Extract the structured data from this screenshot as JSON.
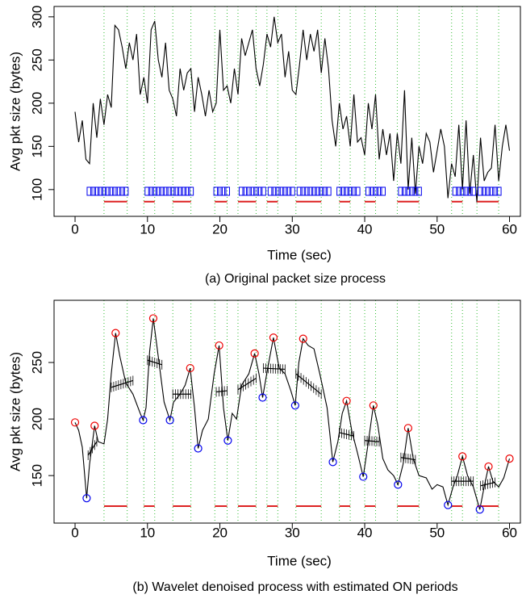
{
  "chart_data": [
    {
      "type": "line",
      "caption": "(a) Original packet size process",
      "xlabel": "Time (sec)",
      "ylabel": "Avg pkt size (bytes)",
      "xlim": [
        -2.9,
        61.5
      ],
      "ylim": [
        69,
        312
      ],
      "xticks": [
        0,
        10,
        20,
        30,
        40,
        50,
        60
      ],
      "yticks": [
        100,
        150,
        200,
        250,
        300
      ],
      "guide_color": "#33bb33",
      "line": {
        "color": "#000000",
        "x": [
          0,
          0.5,
          1,
          1.5,
          2,
          2.5,
          3,
          3.5,
          4,
          4.5,
          5,
          5.5,
          6,
          6.5,
          7,
          7.5,
          8,
          8.5,
          9,
          9.5,
          10,
          10.5,
          11,
          11.5,
          12,
          12.5,
          13,
          13.5,
          14,
          14.5,
          15,
          15.5,
          16,
          16.5,
          17,
          17.5,
          18,
          18.5,
          19,
          19.5,
          20,
          20.5,
          21,
          21.5,
          22,
          22.5,
          23,
          23.5,
          24,
          24.5,
          25,
          25.5,
          26,
          26.5,
          27,
          27.5,
          28,
          28.5,
          29,
          29.5,
          30,
          30.5,
          31,
          31.5,
          32,
          32.5,
          33,
          33.5,
          34,
          34.5,
          35,
          35.5,
          36,
          36.5,
          37,
          37.5,
          38,
          38.5,
          39,
          39.5,
          40,
          40.5,
          41,
          41.5,
          42,
          42.5,
          43,
          43.5,
          44,
          44.5,
          45,
          45.5,
          46,
          46.5,
          47,
          47.5,
          48,
          48.5,
          49,
          49.5,
          50,
          50.5,
          51,
          51.5,
          52,
          52.5,
          53,
          53.5,
          54,
          54.5,
          55,
          55.5,
          56,
          56.5,
          57,
          57.5,
          58,
          58.5,
          59,
          59.5,
          60
        ],
        "y": [
          190,
          155,
          180,
          135,
          130,
          200,
          160,
          205,
          175,
          210,
          195,
          290,
          285,
          265,
          240,
          270,
          250,
          280,
          210,
          230,
          200,
          285,
          295,
          250,
          230,
          270,
          215,
          205,
          185,
          240,
          215,
          235,
          240,
          190,
          230,
          210,
          185,
          215,
          190,
          200,
          285,
          215,
          220,
          200,
          240,
          210,
          275,
          255,
          270,
          285,
          240,
          220,
          245,
          280,
          265,
          300,
          270,
          280,
          230,
          260,
          215,
          210,
          245,
          285,
          250,
          280,
          260,
          285,
          235,
          275,
          240,
          180,
          150,
          200,
          170,
          185,
          150,
          210,
          155,
          160,
          140,
          200,
          170,
          210,
          135,
          170,
          140,
          165,
          110,
          165,
          130,
          215,
          100,
          160,
          95,
          150,
          130,
          165,
          155,
          120,
          145,
          170,
          150,
          90,
          130,
          115,
          175,
          100,
          180,
          95,
          140,
          85,
          160,
          110,
          120,
          125,
          175,
          110,
          150,
          175,
          145
        ]
      },
      "on_markers": {
        "color": "#0000ee",
        "y": 98,
        "x": [
          2,
          2.5,
          3,
          3.5,
          4,
          4.5,
          5,
          5.5,
          6,
          6.5,
          7,
          10,
          10.5,
          11,
          11.5,
          12,
          12.5,
          13,
          13.5,
          14,
          14.5,
          15,
          15.5,
          16,
          19.5,
          20,
          20.5,
          21,
          23,
          23.5,
          24,
          24.5,
          25,
          25.5,
          26,
          27,
          27.5,
          28,
          28.5,
          29,
          29.5,
          30,
          31,
          31.5,
          32,
          32.5,
          33,
          33.5,
          34,
          34.5,
          35,
          36.5,
          37,
          37.5,
          38,
          38.5,
          39,
          40.5,
          41,
          41.5,
          42,
          42.5,
          45,
          45.5,
          46,
          46.5,
          47,
          47.5,
          52.5,
          53,
          53.5,
          54,
          54.5,
          55,
          56,
          56.5,
          57,
          57.5,
          58,
          58.5
        ]
      },
      "on_periods": {
        "color": "#dd2222",
        "y": 86,
        "x": [
          [
            4,
            7.2
          ],
          [
            9.5,
            11
          ],
          [
            13.5,
            16
          ],
          [
            19.3,
            21
          ],
          [
            22.5,
            25
          ],
          [
            26.5,
            28
          ],
          [
            30.5,
            34
          ],
          [
            36.5,
            38
          ],
          [
            40,
            41.5
          ],
          [
            44.5,
            47.5
          ],
          [
            52,
            53.5
          ],
          [
            55.5,
            58.5
          ]
        ]
      }
    },
    {
      "type": "line",
      "caption": "(b) Wavelet denoised process with estimated ON periods",
      "xlabel": "Time (sec)",
      "ylabel": "Avg pkt size (bytes)",
      "xlim": [
        -2.9,
        61.5
      ],
      "ylim": [
        108,
        305
      ],
      "xticks": [
        0,
        10,
        20,
        30,
        40,
        50,
        60
      ],
      "yticks": [
        150,
        200,
        250
      ],
      "guide_color": "#33bb33",
      "line": {
        "color": "#000000",
        "x": [
          0,
          0.5,
          1,
          1.6,
          2,
          2.7,
          3.2,
          4,
          4.5,
          5,
          5.6,
          6.2,
          7,
          8,
          9,
          9.4,
          9.8,
          10.3,
          10.8,
          11.5,
          12.3,
          13.1,
          13.6,
          14.5,
          15.2,
          15.9,
          16.5,
          17,
          17.6,
          18.4,
          19.2,
          19.9,
          20.5,
          21.1,
          21.7,
          22.3,
          23,
          24,
          24.8,
          25.4,
          25.9,
          26.6,
          27.4,
          28.2,
          29,
          29.8,
          30.4,
          30.9,
          31.5,
          32.2,
          33,
          33.8,
          34.8,
          35.6,
          36.3,
          36.9,
          37.5,
          38.2,
          39,
          39.8,
          40.4,
          41.2,
          41.8,
          42.5,
          43.2,
          44,
          44.6,
          45.3,
          46,
          46.7,
          47.5,
          48.5,
          49.3,
          50,
          50.8,
          51.5,
          52.2,
          52.8,
          53.5,
          54.2,
          55,
          55.9,
          56.5,
          57.1,
          57.7,
          58.5,
          59.2,
          60
        ],
        "y": [
          197,
          190,
          175,
          130,
          160,
          194,
          180,
          178,
          200,
          240,
          276,
          255,
          232,
          222,
          205,
          199,
          210,
          260,
          289,
          255,
          215,
          199,
          215,
          222,
          230,
          245,
          210,
          174,
          190,
          200,
          240,
          265,
          210,
          181,
          205,
          200,
          230,
          240,
          258,
          240,
          219,
          245,
          272,
          245,
          240,
          225,
          212,
          250,
          271,
          265,
          262,
          240,
          210,
          162,
          180,
          205,
          216,
          190,
          170,
          149,
          175,
          212,
          195,
          165,
          155,
          150,
          142,
          160,
          192,
          165,
          150,
          148,
          138,
          142,
          140,
          124,
          140,
          150,
          167,
          150,
          140,
          120,
          140,
          158,
          145,
          140,
          148,
          165
        ]
      },
      "peaks": {
        "color": "#ee0000",
        "x": [
          0,
          2.7,
          5.6,
          10.8,
          15.9,
          19.9,
          24.8,
          27.4,
          31.5,
          37.5,
          41.2,
          46,
          53.5,
          57.1,
          60
        ],
        "y": [
          197,
          194,
          276,
          289,
          245,
          265,
          258,
          272,
          271,
          216,
          212,
          192,
          167,
          158,
          165
        ]
      },
      "troughs": {
        "color": "#0000ee",
        "x": [
          1.6,
          9.4,
          13.1,
          17,
          21.1,
          25.9,
          30.4,
          35.6,
          39.8,
          44.6,
          51.5,
          55.9
        ],
        "y": [
          130,
          199,
          199,
          174,
          181,
          219,
          212,
          162,
          149,
          142,
          124,
          120
        ]
      },
      "levels": {
        "color": "#000000",
        "segments": [
          [
            1.8,
            3,
            168,
            180
          ],
          [
            5,
            8,
            228,
            234
          ],
          [
            10,
            12,
            252,
            248
          ],
          [
            13.5,
            16,
            222,
            222
          ],
          [
            19.5,
            21,
            224,
            225
          ],
          [
            22.5,
            25,
            226,
            236
          ],
          [
            26,
            29,
            245,
            244
          ],
          [
            30.5,
            34,
            240,
            222
          ],
          [
            36.5,
            38.5,
            188,
            185
          ],
          [
            40,
            42,
            181,
            180
          ],
          [
            45,
            47,
            166,
            164
          ],
          [
            52,
            55,
            145,
            145
          ],
          [
            56,
            58,
            141,
            144
          ]
        ]
      },
      "on_periods": {
        "color": "#dd2222",
        "y": 123,
        "x": [
          [
            4,
            7.2
          ],
          [
            9.5,
            11
          ],
          [
            13.5,
            16
          ],
          [
            19.3,
            21
          ],
          [
            22.5,
            25
          ],
          [
            26.5,
            28
          ],
          [
            30.5,
            34
          ],
          [
            36.5,
            38
          ],
          [
            40,
            41.5
          ],
          [
            44.5,
            47.5
          ],
          [
            52,
            53.5
          ],
          [
            55.5,
            58.5
          ]
        ]
      }
    }
  ]
}
